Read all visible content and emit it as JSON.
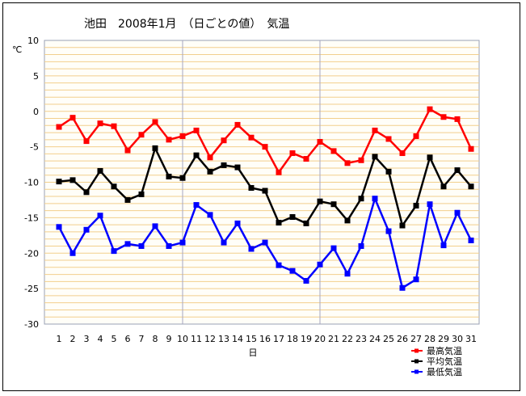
{
  "chart_data": {
    "type": "line",
    "title": "池田　2008年1月　（日ごとの値）　気温",
    "ylabel": "℃",
    "xlabel": "日",
    "ylim": [
      -30,
      10
    ],
    "yticks": [
      10,
      5,
      0,
      -5,
      -10,
      -15,
      -20,
      -25,
      -30
    ],
    "categories": [
      "1",
      "2",
      "3",
      "4",
      "5",
      "6",
      "7",
      "8",
      "9",
      "10",
      "11",
      "12",
      "13",
      "14",
      "15",
      "16",
      "17",
      "18",
      "19",
      "20",
      "21",
      "22",
      "23",
      "24",
      "25",
      "26",
      "27",
      "28",
      "29",
      "30",
      "31"
    ],
    "grid": true,
    "legend_position": "bottom-right",
    "series": [
      {
        "name": "最高気温",
        "color": "#ff0000",
        "values": [
          -2.2,
          -0.9,
          -4.2,
          -1.7,
          -2.1,
          -5.5,
          -3.3,
          -1.5,
          -4.0,
          -3.5,
          -2.7,
          -6.5,
          -4.1,
          -1.9,
          -3.7,
          -5.0,
          -8.6,
          -5.9,
          -6.7,
          -4.3,
          -5.6,
          -7.3,
          -6.9,
          -2.7,
          -3.9,
          -5.9,
          -3.5,
          0.3,
          -0.8,
          -1.1,
          -5.3
        ]
      },
      {
        "name": "平均気温",
        "color": "#000000",
        "values": [
          -9.9,
          -9.7,
          -11.4,
          -8.4,
          -10.6,
          -12.5,
          -11.7,
          -5.2,
          -9.2,
          -9.4,
          -6.2,
          -8.5,
          -7.6,
          -7.9,
          -10.8,
          -11.2,
          -15.7,
          -14.9,
          -15.8,
          -12.7,
          -13.1,
          -15.4,
          -12.3,
          -6.4,
          -8.5,
          -16.1,
          -13.3,
          -6.5,
          -10.6,
          -8.3,
          -10.6
        ]
      },
      {
        "name": "最低気温",
        "color": "#0000ff",
        "values": [
          -16.3,
          -20.0,
          -16.7,
          -14.7,
          -19.7,
          -18.7,
          -19.0,
          -16.2,
          -19.0,
          -18.5,
          -13.2,
          -14.6,
          -18.5,
          -15.8,
          -19.4,
          -18.5,
          -21.7,
          -22.5,
          -23.9,
          -21.6,
          -19.3,
          -22.9,
          -19.0,
          -12.3,
          -16.9,
          -24.9,
          -23.7,
          -13.1,
          -18.9,
          -14.3,
          -18.2
        ]
      }
    ]
  }
}
